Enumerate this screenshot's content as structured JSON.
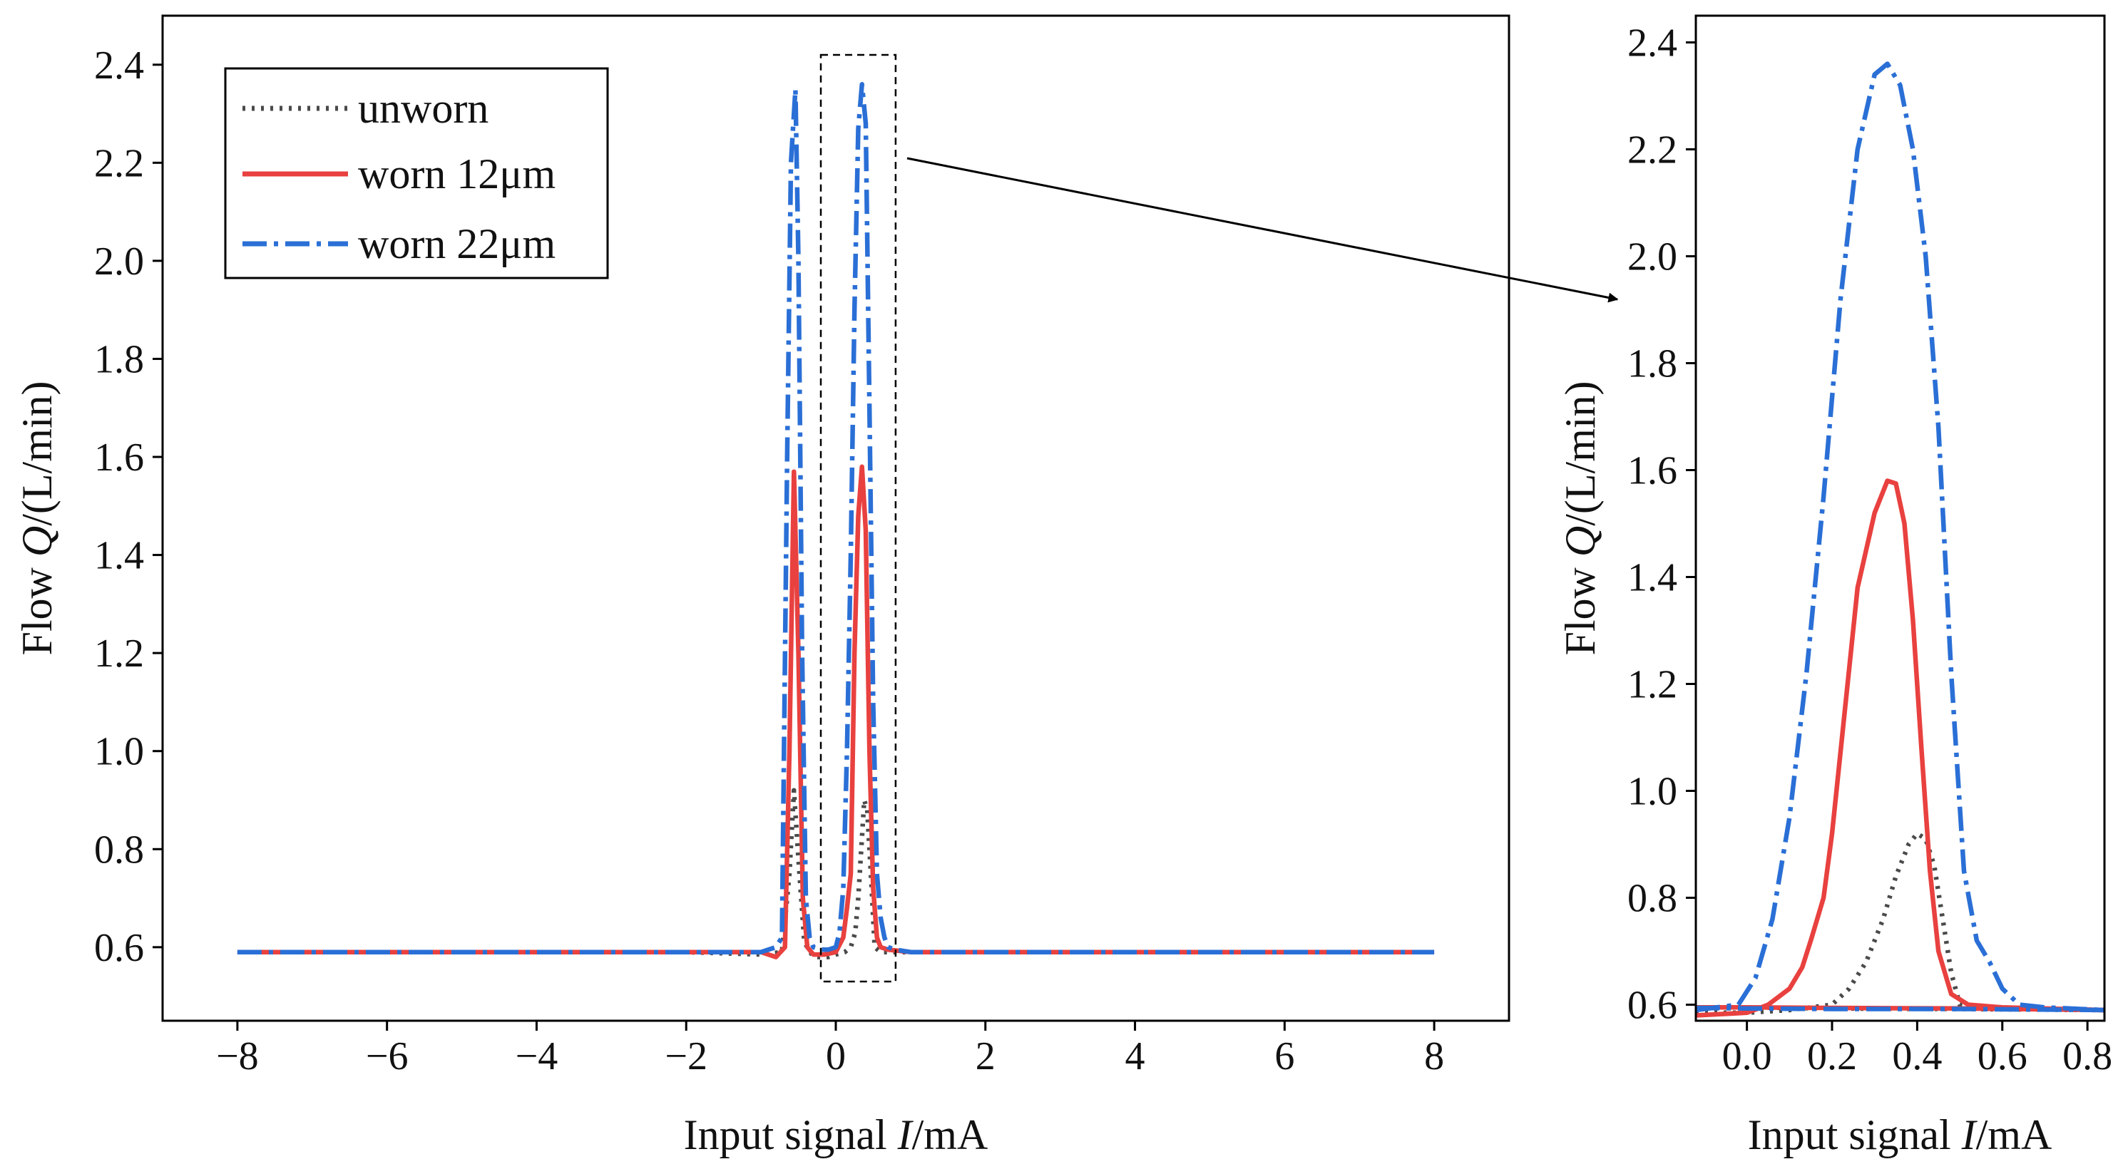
{
  "figure": {
    "description_colors": {
      "unworn": "#4a4a4a",
      "worn12": "#e8413f",
      "worn22": "#2a6fd6"
    }
  },
  "chart_data": [
    {
      "type": "line",
      "panel": "main",
      "xlabel_prefix": "Input signal ",
      "xlabel_var": "I",
      "xlabel_suffix": "/mA",
      "ylabel_prefix": "Flow ",
      "ylabel_var": "Q",
      "ylabel_suffix": "/(L/min)",
      "xlim": [
        -9,
        9
      ],
      "ylim": [
        0.45,
        2.5
      ],
      "xticks": [
        -8,
        -6,
        -4,
        -2,
        0,
        2,
        4,
        6,
        8
      ],
      "xtick_labels": [
        "−8",
        "−6",
        "−4",
        "−2",
        "0",
        "2",
        "4",
        "6",
        "8"
      ],
      "yticks": [
        0.6,
        0.8,
        1.0,
        1.2,
        1.4,
        1.6,
        1.8,
        2.0,
        2.2,
        2.4
      ],
      "ytick_labels": [
        "0.6",
        "0.8",
        "1.0",
        "1.2",
        "1.4",
        "1.6",
        "1.8",
        "2.0",
        "2.2",
        "2.4"
      ],
      "legend": {
        "placement": "top-left",
        "entries": [
          "unworn",
          "worn 12μm",
          "worn 22μm"
        ]
      },
      "zoom_box": {
        "x_range": [
          -0.2,
          0.8
        ],
        "y_range": [
          0.53,
          2.42
        ]
      },
      "series": [
        {
          "name": "unworn",
          "color": "#4a4a4a",
          "style": "dotted",
          "x": [
            -8,
            -2,
            -1,
            -0.72,
            -0.62,
            -0.56,
            -0.5,
            -0.42,
            -0.3,
            -0.1,
            0,
            0.12,
            0.2,
            0.26,
            0.3,
            0.34,
            0.38,
            0.42,
            0.48,
            0.52,
            0.6,
            1,
            2,
            8
          ],
          "y": [
            0.59,
            0.59,
            0.585,
            0.59,
            0.75,
            0.92,
            0.78,
            0.61,
            0.58,
            0.58,
            0.585,
            0.59,
            0.6,
            0.63,
            0.7,
            0.8,
            0.9,
            0.88,
            0.72,
            0.6,
            0.59,
            0.59,
            0.59,
            0.59
          ]
        },
        {
          "name": "worn 12μm",
          "color": "#e8413f",
          "style": "solid",
          "x": [
            -8,
            -2,
            -1,
            -0.8,
            -0.68,
            -0.62,
            -0.56,
            -0.5,
            -0.44,
            -0.38,
            -0.3,
            -0.15,
            0,
            0.1,
            0.15,
            0.2,
            0.25,
            0.3,
            0.35,
            0.4,
            0.45,
            0.5,
            0.55,
            0.6,
            0.7,
            1,
            2,
            8
          ],
          "y": [
            0.59,
            0.59,
            0.59,
            0.58,
            0.6,
            1.0,
            1.57,
            1.2,
            0.7,
            0.6,
            0.585,
            0.585,
            0.59,
            0.62,
            0.68,
            0.75,
            1.2,
            1.48,
            1.58,
            1.45,
            1.0,
            0.72,
            0.62,
            0.6,
            0.595,
            0.59,
            0.59,
            0.59
          ]
        },
        {
          "name": "worn 22μm",
          "color": "#2a6fd6",
          "style": "dashdot",
          "x": [
            -8,
            -2,
            -1,
            -0.8,
            -0.72,
            -0.65,
            -0.6,
            -0.54,
            -0.5,
            -0.45,
            -0.4,
            -0.35,
            -0.3,
            -0.2,
            -0.1,
            0,
            0.05,
            0.1,
            0.15,
            0.2,
            0.25,
            0.3,
            0.35,
            0.4,
            0.45,
            0.5,
            0.55,
            0.6,
            0.65,
            0.7,
            0.8,
            1,
            2,
            8
          ],
          "y": [
            0.59,
            0.59,
            0.59,
            0.6,
            0.62,
            1.6,
            2.2,
            2.35,
            2.0,
            1.2,
            0.7,
            0.62,
            0.6,
            0.595,
            0.595,
            0.6,
            0.63,
            0.72,
            1.0,
            1.4,
            1.9,
            2.27,
            2.36,
            2.28,
            1.7,
            1.1,
            0.75,
            0.66,
            0.62,
            0.6,
            0.595,
            0.59,
            0.59,
            0.59
          ]
        }
      ]
    },
    {
      "type": "line",
      "panel": "zoom",
      "xlabel_prefix": "Input signal ",
      "xlabel_var": "I",
      "xlabel_suffix": "/mA",
      "ylabel_prefix": "Flow ",
      "ylabel_var": "Q",
      "ylabel_suffix": "/(L/min)",
      "xlim": [
        -0.12,
        0.84
      ],
      "ylim": [
        0.57,
        2.45
      ],
      "xticks": [
        0.0,
        0.2,
        0.4,
        0.6,
        0.8
      ],
      "xtick_labels": [
        "0.0",
        "0.2",
        "0.4",
        "0.6",
        "0.8"
      ],
      "yticks": [
        0.6,
        0.8,
        1.0,
        1.2,
        1.4,
        1.6,
        1.8,
        2.0,
        2.2,
        2.4
      ],
      "ytick_labels": [
        "0.6",
        "0.8",
        "1.0",
        "1.2",
        "1.4",
        "1.6",
        "1.8",
        "2.0",
        "2.2",
        "2.4"
      ],
      "series": [
        {
          "name": "unworn",
          "color": "#4a4a4a",
          "style": "dotted",
          "x": [
            -0.12,
            0.0,
            0.1,
            0.15,
            0.2,
            0.24,
            0.28,
            0.32,
            0.35,
            0.38,
            0.4,
            0.42,
            0.44,
            0.46,
            0.48,
            0.5,
            0.55,
            0.84
          ],
          "y": [
            0.585,
            0.585,
            0.59,
            0.595,
            0.6,
            0.63,
            0.68,
            0.76,
            0.84,
            0.9,
            0.92,
            0.91,
            0.86,
            0.76,
            0.66,
            0.6,
            0.595,
            0.59
          ],
          "return_x": [
            0.84,
            0.5,
            0.2,
            0.0,
            -0.12
          ],
          "return_y": [
            0.59,
            0.592,
            0.593,
            0.595,
            0.595
          ]
        },
        {
          "name": "worn 12μm",
          "color": "#e8413f",
          "style": "solid",
          "x": [
            -0.12,
            0.0,
            0.05,
            0.1,
            0.13,
            0.15,
            0.18,
            0.2,
            0.23,
            0.26,
            0.3,
            0.33,
            0.35,
            0.37,
            0.39,
            0.41,
            0.43,
            0.45,
            0.48,
            0.52,
            0.6,
            0.84
          ],
          "y": [
            0.58,
            0.585,
            0.6,
            0.63,
            0.67,
            0.72,
            0.8,
            0.92,
            1.15,
            1.38,
            1.52,
            1.58,
            1.575,
            1.5,
            1.32,
            1.08,
            0.85,
            0.7,
            0.62,
            0.6,
            0.595,
            0.59
          ],
          "return_x": [
            0.84,
            0.5,
            0.2,
            0.0,
            -0.12
          ],
          "return_y": [
            0.59,
            0.593,
            0.594,
            0.595,
            0.595
          ]
        },
        {
          "name": "worn 22μm",
          "color": "#2a6fd6",
          "style": "dashdot",
          "x": [
            -0.12,
            -0.02,
            0.02,
            0.06,
            0.1,
            0.14,
            0.18,
            0.22,
            0.26,
            0.3,
            0.33,
            0.36,
            0.39,
            0.42,
            0.45,
            0.48,
            0.51,
            0.54,
            0.57,
            0.6,
            0.64,
            0.7,
            0.84
          ],
          "y": [
            0.59,
            0.6,
            0.65,
            0.76,
            0.95,
            1.22,
            1.55,
            1.92,
            2.2,
            2.34,
            2.36,
            2.32,
            2.2,
            2.0,
            1.68,
            1.22,
            0.85,
            0.72,
            0.68,
            0.63,
            0.6,
            0.595,
            0.59
          ],
          "return_x": [
            0.84,
            0.5,
            0.2,
            0.0,
            -0.12
          ],
          "return_y": [
            0.59,
            0.592,
            0.592,
            0.593,
            0.594
          ]
        }
      ]
    }
  ]
}
